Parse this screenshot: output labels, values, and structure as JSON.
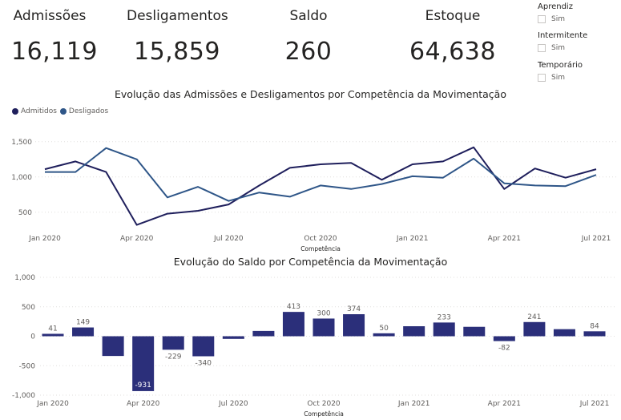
{
  "kpis": [
    {
      "label": "Admissões",
      "value": "16,119"
    },
    {
      "label": "Desligamentos",
      "value": "15,859"
    },
    {
      "label": "Saldo",
      "value": "260"
    },
    {
      "label": "Estoque",
      "value": "64,638"
    }
  ],
  "slicers": [
    {
      "title": "Aprendiz",
      "option": "Sim"
    },
    {
      "title": "Intermitente",
      "option": "Sim"
    },
    {
      "title": "Temporário",
      "option": "Sim"
    }
  ],
  "colors": {
    "admitidos": "#1f1f5c",
    "desligados": "#2f5688",
    "bar": "#2b2f7a"
  },
  "chart_data": [
    {
      "type": "line",
      "title": "Evolução das Admissões e Desligamentos por Competência da Movimentação",
      "xlabel": "Competência",
      "ylabel": "",
      "x": [
        "Jan 2020",
        "Feb 2020",
        "Mar 2020",
        "Apr 2020",
        "May 2020",
        "Jun 2020",
        "Jul 2020",
        "Aug 2020",
        "Sep 2020",
        "Oct 2020",
        "Nov 2020",
        "Dec 2020",
        "Jan 2021",
        "Feb 2021",
        "Mar 2021",
        "Apr 2021",
        "May 2021",
        "Jun 2021",
        "Jul 2021"
      ],
      "x_tick_labels": [
        "Jan 2020",
        "Apr 2020",
        "Jul 2020",
        "Oct 2020",
        "Jan 2021",
        "Apr 2021",
        "Jul 2021"
      ],
      "y_tick_labels": [
        "1,500",
        "1,000",
        "500"
      ],
      "ylim": [
        350,
        1600
      ],
      "legend": "top-left",
      "grid": true,
      "series": [
        {
          "name": "Admitidos",
          "values": [
            1110,
            1220,
            1070,
            320,
            480,
            520,
            610,
            880,
            1130,
            1180,
            1200,
            960,
            1180,
            1220,
            1420,
            830,
            1120,
            990,
            1110
          ]
        },
        {
          "name": "Desligados",
          "values": [
            1070,
            1070,
            1410,
            1250,
            710,
            860,
            660,
            780,
            720,
            880,
            830,
            900,
            1010,
            990,
            1260,
            910,
            880,
            870,
            1030
          ]
        }
      ]
    },
    {
      "type": "bar",
      "title": "Evolução do Saldo por Competência da Movimentação",
      "xlabel": "Competência",
      "ylabel": "",
      "categories": [
        "Jan 2020",
        "Feb 2020",
        "Mar 2020",
        "Apr 2020",
        "May 2020",
        "Jun 2020",
        "Jul 2020",
        "Aug 2020",
        "Sep 2020",
        "Oct 2020",
        "Nov 2020",
        "Dec 2020",
        "Jan 2021",
        "Feb 2021",
        "Mar 2021",
        "Apr 2021",
        "May 2021",
        "Jun 2021",
        "Jul 2021"
      ],
      "x_tick_labels": [
        "Jan 2020",
        "Apr 2020",
        "Jul 2020",
        "Oct 2020",
        "Jan 2021",
        "Apr 2021",
        "Jul 2021"
      ],
      "values": [
        41,
        149,
        -335,
        -931,
        -229,
        -340,
        -45,
        90,
        413,
        300,
        374,
        50,
        170,
        233,
        160,
        -82,
        241,
        120,
        84
      ],
      "data_labels": [
        "41",
        "149",
        "",
        "-931",
        "-229",
        "-340",
        "",
        "",
        "413",
        "300",
        "374",
        "50",
        "",
        "233",
        "",
        "-82",
        "241",
        "",
        "84"
      ],
      "y_tick_labels": [
        "1,000",
        "500",
        "0",
        "-500",
        "-1,000"
      ],
      "ylim": [
        -1000,
        1000
      ],
      "grid": true
    }
  ]
}
